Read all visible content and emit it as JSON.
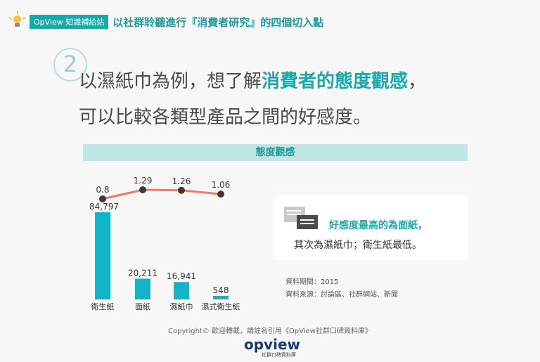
{
  "header": {
    "badge": "OpView 知識補給站",
    "title": "以社群聆聽進行『消費者研究』的四個切入點"
  },
  "section_number": "2",
  "headline": {
    "part1": "以濕紙巾為例，想了解",
    "emphasis": "消費者的態度觀感",
    "part2": "，",
    "line2": "可以比較各類型產品之間的好感度。"
  },
  "band_title": "態度觀感",
  "chart_data": {
    "type": "bar",
    "categories": [
      "衛生紙",
      "面紙",
      "濕紙巾",
      "濕式衛生紙"
    ],
    "bar_values": [
      84797,
      20211,
      16941,
      548
    ],
    "bar_labels": [
      "84,797",
      "20,211",
      "16,941",
      "548"
    ],
    "line_values": [
      0.8,
      1.29,
      1.26,
      1.06
    ],
    "line_labels": [
      "0.8",
      "1.29",
      "1.26",
      "1.06"
    ],
    "bar_color": "#14b4c8",
    "line_color": "#f07b5f",
    "point_color": "#3a3a3a"
  },
  "info": {
    "line1": "好感度最高的為面紙，",
    "line2": "其次為濕紙巾；衛生紙最低。"
  },
  "source": {
    "period": "資料期間：2015",
    "origin": "資料來源：討論區、社群網站、新聞"
  },
  "copyright": "Copyright© 歡迎轉載，請註名引用《OpView社群口碑資料庫》",
  "logo": {
    "name": "opview",
    "subtitle": "社群口碑資料庫"
  }
}
